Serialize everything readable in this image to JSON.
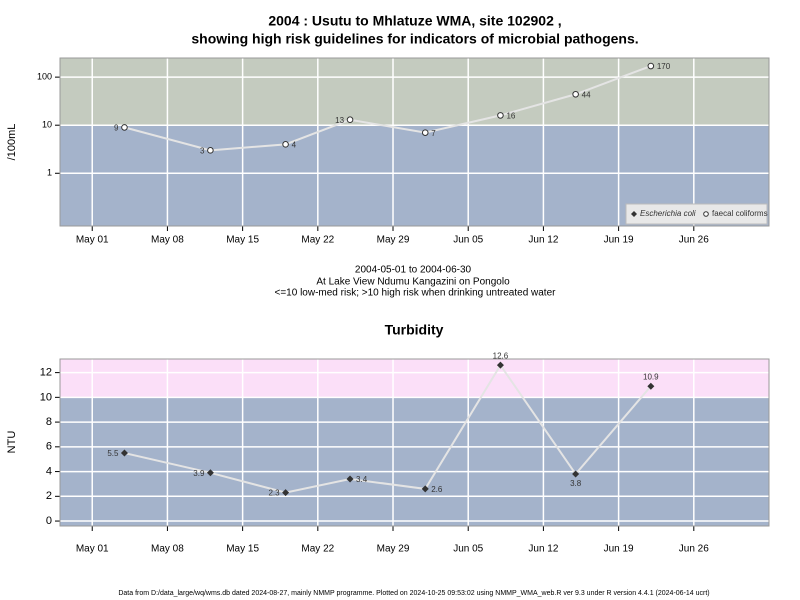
{
  "chart_data": [
    {
      "type": "line",
      "title": [
        "2004 : Usutu to Mhlatuze WMA, site 102902 ,",
        "showing high risk guidelines for indicators of microbial pathogens."
      ],
      "y_label": "/100mL",
      "notes": [
        "2004-05-01 to 2004-06-30",
        "At Lake View Ndumu Kangazini on Pongolo",
        "<=10 low-med risk; >10 high risk when drinking untreated water"
      ],
      "x": [
        "2004-05-04",
        "2004-05-12",
        "2004-05-19",
        "2004-05-25",
        "2004-06-01",
        "2004-06-08",
        "2004-06-15",
        "2004-06-22"
      ],
      "series": [
        {
          "name": "Escherichia coli",
          "color": "#333333",
          "values": [
            null,
            null,
            null,
            null,
            null,
            null,
            null,
            null
          ]
        },
        {
          "name": "faecal coliforms",
          "color": "#ffffff",
          "values": [
            9,
            3,
            4,
            13,
            7,
            16,
            44,
            170
          ]
        }
      ],
      "xlim": [
        "2004-04-28",
        "2004-07-03"
      ],
      "xticks": [
        {
          "value": "2004-05-01",
          "label": "May 01"
        },
        {
          "value": "2004-05-08",
          "label": "May 08"
        },
        {
          "value": "2004-05-15",
          "label": "May 15"
        },
        {
          "value": "2004-05-22",
          "label": "May 22"
        },
        {
          "value": "2004-05-29",
          "label": "May 29"
        },
        {
          "value": "2004-06-05",
          "label": "Jun 05"
        },
        {
          "value": "2004-06-12",
          "label": "Jun 12"
        },
        {
          "value": "2004-06-19",
          "label": "Jun 19"
        },
        {
          "value": "2004-06-26",
          "label": "Jun 26"
        }
      ],
      "ylim": [
        0.08,
        250
      ],
      "yticks": [
        1,
        10,
        100
      ],
      "log_scale": true,
      "grid": true,
      "threshold": 10,
      "band_colors": [
        "#a4b3cb",
        "#c4cbbf"
      ],
      "legend": "bottom-right"
    },
    {
      "type": "line",
      "title": "Turbidity",
      "y_label": "NTU",
      "x": [
        "2004-05-04",
        "2004-05-12",
        "2004-05-19",
        "2004-05-25",
        "2004-06-01",
        "2004-06-08",
        "2004-06-15",
        "2004-06-22"
      ],
      "series": [
        {
          "name": "Turbidity",
          "color": "#333333",
          "values": [
            5.5,
            3.9,
            2.3,
            3.4,
            2.6,
            12.6,
            3.8,
            10.9
          ]
        }
      ],
      "xlim": [
        "2004-04-28",
        "2004-07-03"
      ],
      "xticks": [
        {
          "value": "2004-05-01",
          "label": "May 01"
        },
        {
          "value": "2004-05-08",
          "label": "May 08"
        },
        {
          "value": "2004-05-15",
          "label": "May 15"
        },
        {
          "value": "2004-05-22",
          "label": "May 22"
        },
        {
          "value": "2004-05-29",
          "label": "May 29"
        },
        {
          "value": "2004-06-05",
          "label": "Jun 05"
        },
        {
          "value": "2004-06-12",
          "label": "Jun 12"
        },
        {
          "value": "2004-06-19",
          "label": "Jun 19"
        },
        {
          "value": "2004-06-26",
          "label": "Jun 26"
        }
      ],
      "ylim": [
        -0.4,
        13.1
      ],
      "yticks": [
        0,
        2,
        4,
        6,
        8,
        10,
        12
      ],
      "log_scale": false,
      "grid": true,
      "threshold": 10,
      "band_colors": [
        "#a4b3cb",
        "#fbdff8"
      ]
    }
  ],
  "footer": "Data from D:/data_large/wq/wms.db dated 2024-08-27, mainly NMMP programme. Plotted on 2024-10-25 09:53:02 using NMMP_WMA_web.R ver 9.3 under R version 4.4.1 (2024-06-14 ucrt)"
}
